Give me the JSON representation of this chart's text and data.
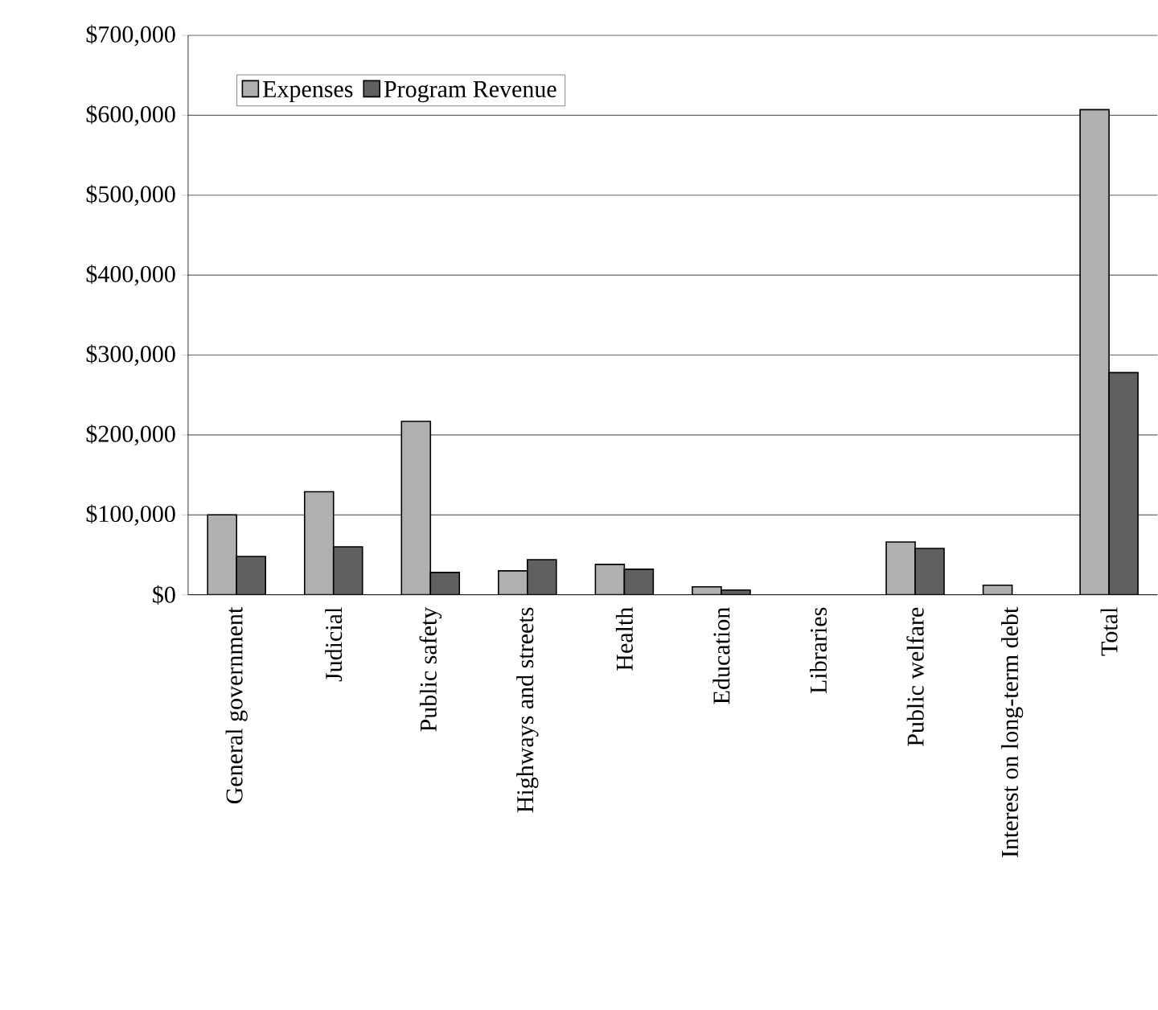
{
  "chart_data": {
    "type": "bar",
    "categories": [
      "General government",
      "Judicial",
      "Public safety",
      "Highways and streets",
      "Health",
      "Education",
      "Libraries",
      "Public welfare",
      "Interest on long-term debt",
      "Total"
    ],
    "series": [
      {
        "name": "Expenses",
        "color": "#b0b0b0",
        "values": [
          100000,
          129000,
          217000,
          30000,
          38000,
          10000,
          null,
          66000,
          12000,
          607000
        ]
      },
      {
        "name": "Program Revenue",
        "color": "#606060",
        "values": [
          48000,
          60000,
          28000,
          44000,
          32000,
          6000,
          null,
          58000,
          null,
          278000
        ]
      }
    ],
    "ylim": [
      0,
      700000
    ],
    "yticks": [
      {
        "value": 0,
        "label": "$0"
      },
      {
        "value": 100000,
        "label": "$100,000"
      },
      {
        "value": 200000,
        "label": "$200,000"
      },
      {
        "value": 300000,
        "label": "$300,000"
      },
      {
        "value": 400000,
        "label": "$400,000"
      },
      {
        "value": 500000,
        "label": "$500,000"
      },
      {
        "value": 600000,
        "label": "$600,000"
      },
      {
        "value": 700000,
        "label": "$700,000"
      }
    ],
    "grid": "y",
    "legend": "top left"
  }
}
